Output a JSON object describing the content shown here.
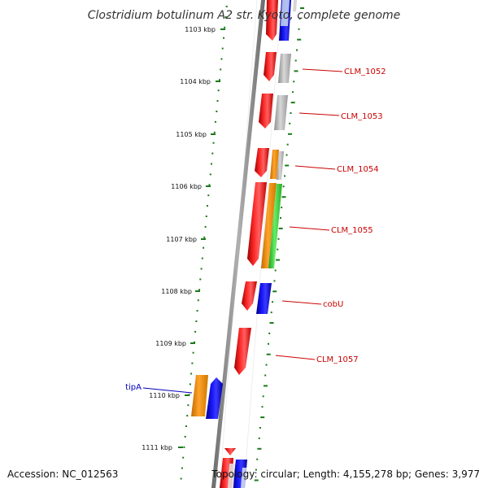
{
  "title": "Clostridium botulinum A2 str. Kyoto, complete genome",
  "accession": "Accession: NC_012563",
  "summary": "Topology: circular; Length: 4,155,278 bp; Genes: 3,977",
  "colors": {
    "backbone": "#888888",
    "tick": "#1a7a1a",
    "label_red": "#cc0000",
    "label_blue": "#0000bb",
    "gene_red": "#ee0000",
    "gene_blue": "#0000ee",
    "gene_gray": "#a8a8a8",
    "gene_orange": "#f08c00",
    "gene_green": "#33cc33"
  },
  "scale": {
    "tick_labels": [
      "1103 kbp",
      "1104 kbp",
      "1105 kbp",
      "1106 kbp",
      "1107 kbp",
      "1108 kbp",
      "1109 kbp",
      "1110 kbp",
      "1111 kbp"
    ]
  },
  "gene_labels": [
    {
      "name": "CLM_1052",
      "strand": "forward"
    },
    {
      "name": "CLM_1053",
      "strand": "forward"
    },
    {
      "name": "CLM_1054",
      "strand": "forward"
    },
    {
      "name": "CLM_1055",
      "strand": "forward"
    },
    {
      "name": "cobU",
      "strand": "forward"
    },
    {
      "name": "CLM_1057",
      "strand": "forward"
    },
    {
      "name": "tipA",
      "strand": "reverse"
    }
  ]
}
